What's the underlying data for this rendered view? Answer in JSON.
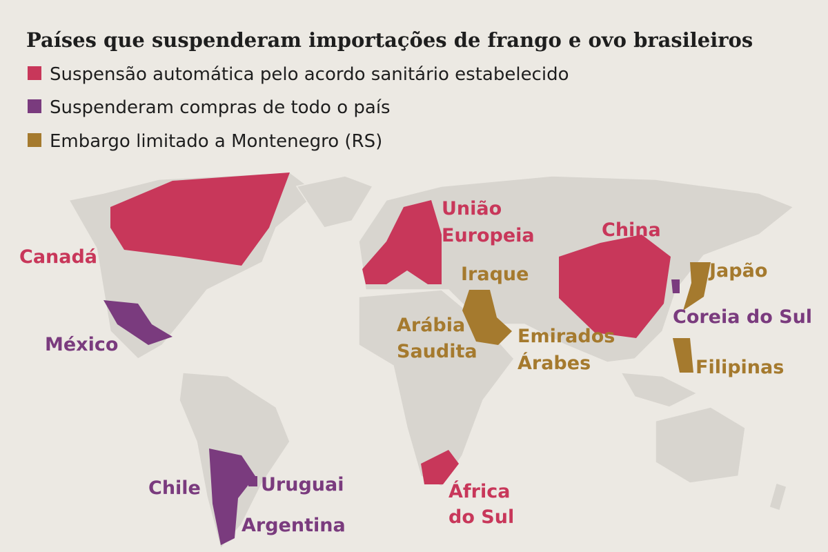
{
  "title": "Países que suspenderam importações de frango e ovo brasileiros",
  "legend": [
    {
      "label": "Suspensão automática pelo acordo sanitário estabelecido",
      "color": "#c8375a",
      "countries": [
        [
          "Canadá"
        ],
        [
          "União",
          "Europeia"
        ],
        [
          "China"
        ],
        [
          "África",
          "do Sul"
        ]
      ]
    },
    {
      "label": "Suspenderam compras de todo o país",
      "color": "#7a3b7e",
      "countries": [
        [
          "México"
        ],
        [
          "Coreia do Sul"
        ],
        [
          "Chile"
        ],
        [
          "Uruguai"
        ],
        [
          "Argentina"
        ]
      ]
    },
    {
      "label": "Embargo limitado a Montenegro (RS)",
      "color": "#a57a2e",
      "countries": [
        [
          "Iraque"
        ],
        [
          "Arábia",
          "Saudita"
        ],
        [
          "Emirados",
          "Árabes"
        ],
        [
          "Japão"
        ],
        [
          "Filipinas"
        ]
      ]
    }
  ]
}
